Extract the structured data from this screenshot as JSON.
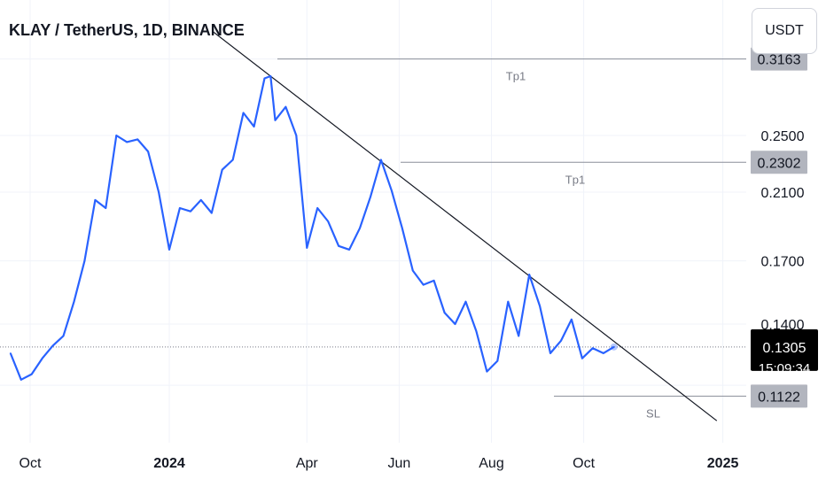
{
  "chart_data": {
    "type": "line",
    "title": "KLAY / TetherUS, 1D, BINANCE",
    "currency": "USDT",
    "x_ticks": [
      "Oct",
      "2024",
      "Apr",
      "Jun",
      "Aug",
      "Oct",
      "2025"
    ],
    "y_ticks": [
      "0.2500",
      "0.2100",
      "0.1700",
      "0.1400"
    ],
    "series": [
      {
        "color": "#2962ff",
        "x": [
          "2023-09-18",
          "2023-09-25",
          "2023-10-02",
          "2023-10-09",
          "2023-10-16",
          "2023-10-23",
          "2023-10-30",
          "2023-11-06",
          "2023-11-13",
          "2023-11-20",
          "2023-11-27",
          "2023-12-04",
          "2023-12-11",
          "2023-12-18",
          "2023-12-25",
          "2024-01-01",
          "2024-01-08",
          "2024-01-15",
          "2024-01-22",
          "2024-01-29",
          "2024-02-05",
          "2024-02-12",
          "2024-02-19",
          "2024-02-26",
          "2024-03-04",
          "2024-03-08",
          "2024-03-11",
          "2024-03-18",
          "2024-03-25",
          "2024-04-01",
          "2024-04-08",
          "2024-04-15",
          "2024-04-22",
          "2024-04-29",
          "2024-05-06",
          "2024-05-13",
          "2024-05-20",
          "2024-05-27",
          "2024-06-03",
          "2024-06-10",
          "2024-06-17",
          "2024-06-24",
          "2024-07-01",
          "2024-07-08",
          "2024-07-15",
          "2024-07-22",
          "2024-07-29",
          "2024-08-05",
          "2024-08-12",
          "2024-08-19",
          "2024-08-26",
          "2024-09-02",
          "2024-09-09",
          "2024-09-16",
          "2024-09-23",
          "2024-09-30",
          "2024-10-07",
          "2024-10-14",
          "2024-10-21"
        ],
        "values": [
          0.128,
          0.118,
          0.12,
          0.126,
          0.131,
          0.135,
          0.15,
          0.17,
          0.205,
          0.2,
          0.25,
          0.245,
          0.247,
          0.238,
          0.21,
          0.176,
          0.2,
          0.198,
          0.205,
          0.197,
          0.225,
          0.232,
          0.268,
          0.257,
          0.298,
          0.3,
          0.262,
          0.273,
          0.25,
          0.177,
          0.2,
          0.192,
          0.178,
          0.176,
          0.188,
          0.207,
          0.232,
          0.211,
          0.188,
          0.165,
          0.158,
          0.16,
          0.145,
          0.14,
          0.15,
          0.137,
          0.121,
          0.125,
          0.15,
          0.135,
          0.163,
          0.148,
          0.128,
          0.133,
          0.142,
          0.126,
          0.13,
          0.128,
          0.1305
        ]
      }
    ],
    "trendline": {
      "from": [
        "2024-03-08",
        0.3
      ],
      "to": [
        "2024-12-28",
        0.104
      ]
    },
    "levels": [
      {
        "label": "Tp1",
        "value": 0.3163,
        "axis_label": "0.3163"
      },
      {
        "label": "Tp1",
        "value": 0.2302,
        "axis_label": "0.2302"
      },
      {
        "label": "SL",
        "value": 0.1122,
        "axis_label": "0.1122"
      }
    ],
    "last_price": {
      "value": 0.1305,
      "label": "0.1305",
      "countdown": "15:09:34"
    },
    "grid": true,
    "y_scale": "log"
  }
}
